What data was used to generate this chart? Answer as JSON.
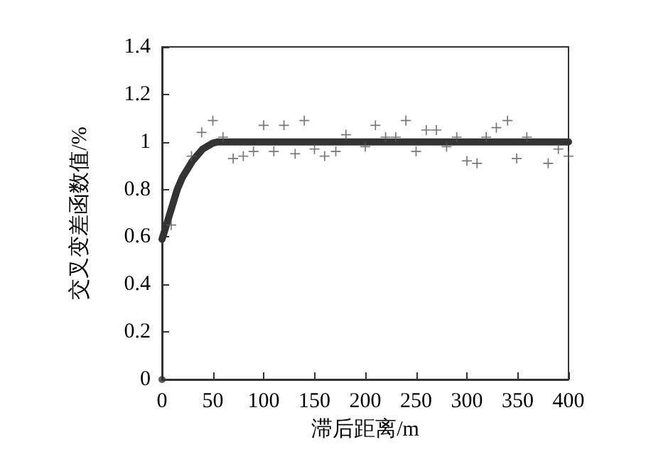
{
  "chart_data": {
    "type": "scatter",
    "xlabel": "滞后距离/m",
    "ylabel": "交叉变差函数值/%",
    "xlim": [
      0,
      400
    ],
    "ylim": [
      0,
      1.4
    ],
    "xticks": [
      0,
      50,
      100,
      150,
      200,
      250,
      300,
      350,
      400
    ],
    "yticks": [
      0,
      0.2,
      0.4,
      0.6,
      0.8,
      1,
      1.2,
      1.4
    ],
    "grid": false,
    "series": [
      {
        "type": "scatter",
        "marker": "cross",
        "color": "#555555",
        "x": [
          9,
          29,
          39,
          50,
          60,
          70,
          80,
          90,
          100,
          110,
          120,
          131,
          140,
          150,
          160,
          171,
          181,
          200,
          210,
          220,
          230,
          240,
          250,
          260,
          270,
          280,
          290,
          300,
          310,
          319,
          329,
          340,
          349,
          359,
          380,
          390,
          400
        ],
        "values": [
          0.65,
          0.94,
          1.04,
          1.09,
          1.02,
          0.93,
          0.94,
          0.96,
          1.07,
          0.96,
          1.07,
          0.95,
          1.09,
          0.97,
          0.94,
          0.96,
          1.03,
          0.98,
          1.07,
          1.02,
          1.02,
          1.09,
          0.96,
          1.05,
          1.05,
          0.98,
          1.02,
          0.92,
          0.91,
          1.02,
          1.06,
          1.09,
          0.93,
          1.02,
          0.91,
          0.97,
          0.94
        ]
      },
      {
        "type": "line",
        "marker": "none",
        "line_style": "solid",
        "color": "#333333",
        "x": [
          0,
          5,
          10,
          15,
          20,
          30,
          40,
          50,
          55,
          400
        ],
        "values": [
          0.59,
          0.66,
          0.73,
          0.8,
          0.85,
          0.92,
          0.97,
          0.995,
          1,
          1
        ]
      },
      {
        "type": "scatter",
        "marker": "circle",
        "color": "#333333",
        "x": [
          0
        ],
        "values": [
          0
        ]
      }
    ]
  }
}
